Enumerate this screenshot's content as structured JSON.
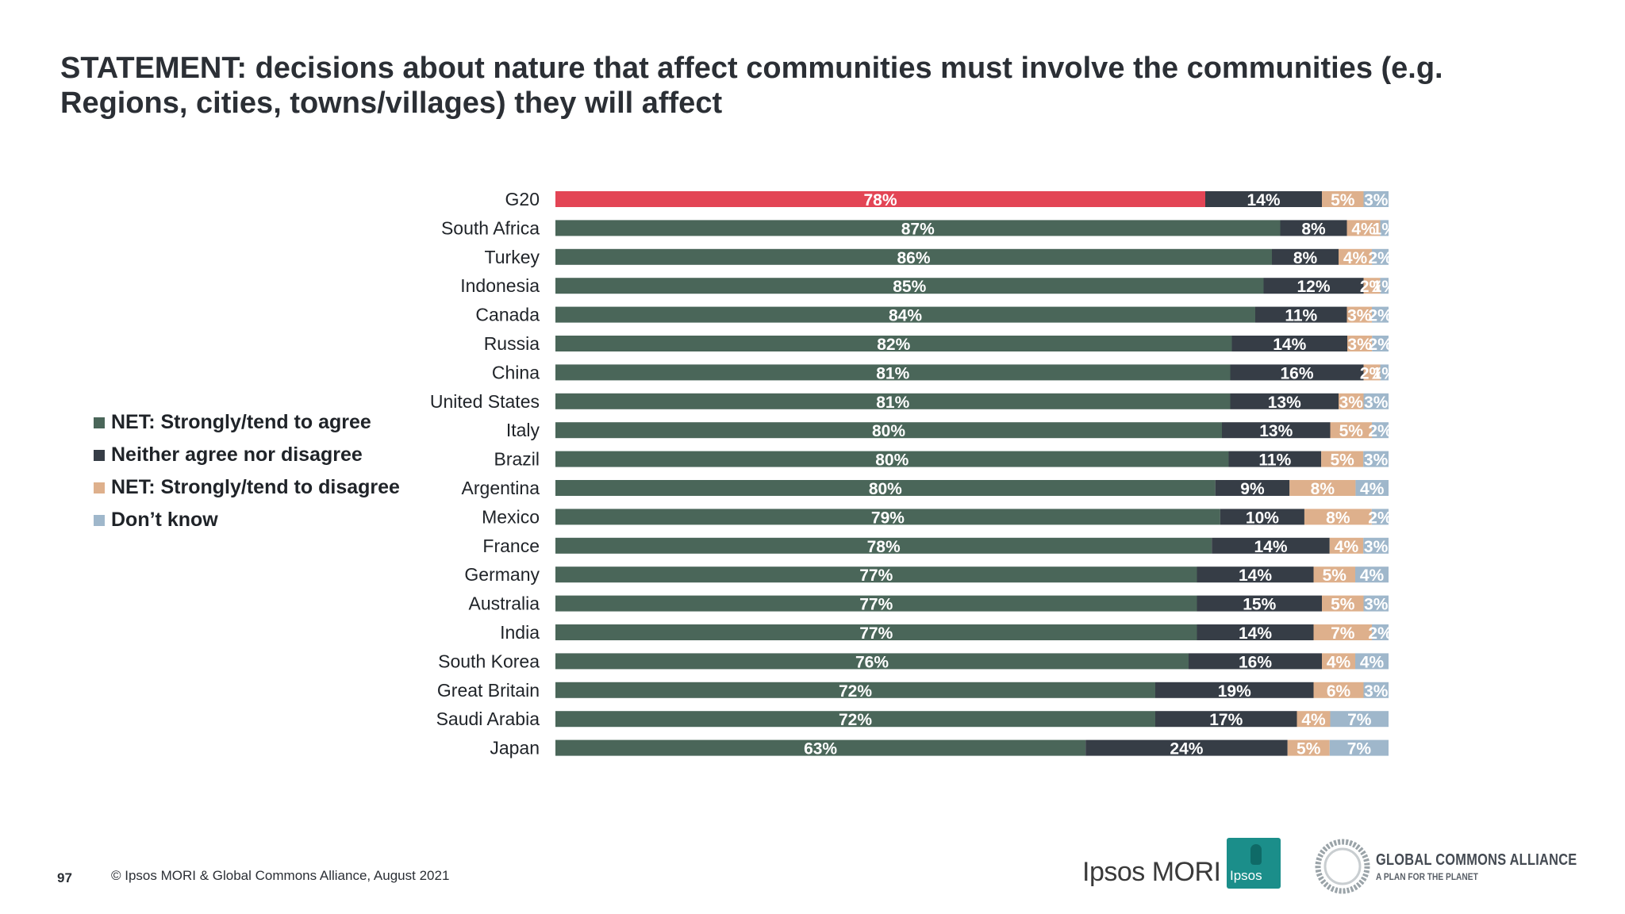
{
  "title": {
    "line1": "STATEMENT: decisions about nature that affect communities must involve the communities (e.g.",
    "line2": "Regions, cities, towns/villages) they will affect"
  },
  "legend": {
    "items": [
      {
        "label": "NET: Strongly/tend to agree",
        "color": "#4a6659"
      },
      {
        "label": "Neither agree nor disagree",
        "color": "#363d46"
      },
      {
        "label": "NET: Strongly/tend to disagree",
        "color": "#deb08c"
      },
      {
        "label": "Don’t know",
        "color": "#9fb7cb"
      }
    ]
  },
  "colors": {
    "highlight": "#e34555",
    "agree": "#4a6659",
    "neither": "#363d46",
    "disagree": "#deb08c",
    "dont_know": "#9fb7cb"
  },
  "chart_data": {
    "type": "bar",
    "orientation": "horizontal",
    "stacked": true,
    "percent_stacked": true,
    "categories": [
      "G20",
      "South Africa",
      "Turkey",
      "Indonesia",
      "Canada",
      "Russia",
      "China",
      "United States",
      "Italy",
      "Brazil",
      "Argentina",
      "Mexico",
      "France",
      "Germany",
      "Australia",
      "India",
      "South Korea",
      "Great Britain",
      "Saudi Arabia",
      "Japan"
    ],
    "highlight_category": "G20",
    "series": [
      {
        "name": "NET: Strongly/tend to agree",
        "values": [
          78,
          87,
          86,
          85,
          84,
          82,
          81,
          81,
          80,
          80,
          80,
          79,
          78,
          77,
          77,
          77,
          76,
          72,
          72,
          63
        ]
      },
      {
        "name": "Neither agree nor disagree",
        "values": [
          14,
          8,
          8,
          12,
          11,
          14,
          16,
          13,
          13,
          11,
          9,
          10,
          14,
          14,
          15,
          14,
          16,
          19,
          17,
          24
        ]
      },
      {
        "name": "NET: Strongly/tend to disagree",
        "values": [
          5,
          4,
          4,
          2,
          3,
          3,
          2,
          3,
          5,
          5,
          8,
          8,
          4,
          5,
          5,
          7,
          4,
          6,
          4,
          5
        ]
      },
      {
        "name": "Don’t know",
        "values": [
          3,
          1,
          2,
          1,
          2,
          2,
          1,
          3,
          2,
          3,
          4,
          2,
          3,
          4,
          3,
          2,
          4,
          3,
          7,
          7
        ]
      }
    ],
    "value_suffix": "%",
    "legend_position": "left",
    "grid": false
  },
  "footer": {
    "page_number": "97",
    "copyright": "© Ipsos MORI & Global Commons Alliance, August 2021",
    "ipsos_name": "Ipsos MORI",
    "ipsos_logo_text": "Ipsos",
    "gca_name": "GLOBAL COMMONS ALLIANCE",
    "gca_tagline": "A PLAN FOR THE PLANET"
  }
}
